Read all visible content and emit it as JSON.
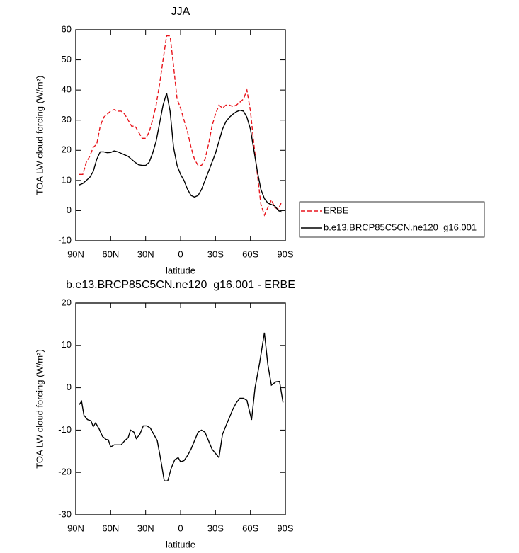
{
  "chart_data": [
    {
      "type": "line",
      "title": "JJA",
      "xlabel": "latitude",
      "ylabel": "TOA LW cloud forcing (W/m²)",
      "x": [
        87,
        84,
        81,
        78,
        75,
        72,
        69,
        66,
        63,
        60,
        57,
        54,
        51,
        48,
        45,
        42,
        39,
        36,
        33,
        30,
        27,
        24,
        21,
        18,
        15,
        12,
        9,
        6,
        3,
        0,
        -3,
        -6,
        -9,
        -12,
        -15,
        -18,
        -21,
        -24,
        -27,
        -30,
        -33,
        -36,
        -39,
        -42,
        -45,
        -48,
        -51,
        -54,
        -57,
        -60,
        -63,
        -66,
        -69,
        -72,
        -75,
        -78,
        -81,
        -84,
        -87
      ],
      "series": [
        {
          "name": "ERBE",
          "color": "#e8141b",
          "linestyle": "dashed",
          "values": [
            12,
            12,
            16,
            18,
            21,
            22,
            28,
            31,
            32,
            33,
            33.5,
            33,
            33,
            32,
            30,
            28,
            28,
            26,
            24,
            24,
            26,
            30,
            35,
            42,
            50,
            58,
            58,
            48,
            37,
            34,
            30,
            26,
            21,
            17,
            15,
            15,
            17,
            22,
            28,
            32,
            35,
            34,
            35,
            35,
            34.5,
            35,
            36,
            37,
            40,
            33,
            22,
            12,
            2,
            -1.5,
            1,
            3.5,
            1,
            0.5,
            3
          ]
        },
        {
          "name": "b.e13.BRCP85C5CN.ne120_g16.001",
          "color": "#000000",
          "linestyle": "solid",
          "values": [
            8.5,
            9,
            10,
            11,
            13,
            17,
            19.5,
            19.5,
            19.2,
            19.3,
            19.8,
            19.5,
            19,
            18.5,
            18,
            17,
            16,
            15.2,
            15,
            15,
            16,
            19,
            23,
            29,
            35,
            39,
            33,
            21,
            15,
            12,
            10,
            7,
            5,
            4.5,
            5,
            7,
            10,
            13,
            16,
            19,
            23,
            27,
            29.5,
            31,
            32,
            32.8,
            33.3,
            33,
            31,
            27,
            20,
            13,
            7,
            4,
            2.5,
            2,
            1.5,
            0,
            -0.5
          ]
        }
      ],
      "xlim": [
        90,
        -90
      ],
      "xticks": [
        {
          "value": 90,
          "label": "90N"
        },
        {
          "value": 60,
          "label": "60N"
        },
        {
          "value": 30,
          "label": "30N"
        },
        0,
        {
          "value": -30,
          "label": "30S"
        },
        {
          "value": -60,
          "label": "60S"
        },
        {
          "value": -90,
          "label": "90S"
        }
      ],
      "ylim": [
        -10,
        60
      ],
      "yticks": [
        -10,
        0,
        10,
        20,
        30,
        40,
        50,
        60
      ],
      "legend": "right"
    },
    {
      "type": "line",
      "title": "b.e13.BRCP85C5CN.ne120_g16.001 - ERBE",
      "xlabel": "latitude",
      "ylabel": "TOA LW cloud forcing (W/m²)",
      "x": [
        87,
        85,
        83,
        80,
        77,
        75,
        73,
        70,
        67,
        64,
        62,
        60,
        57,
        54,
        51,
        48,
        45,
        43,
        40,
        38,
        35,
        32,
        29,
        26,
        23,
        20,
        17,
        14,
        11,
        8,
        5,
        2,
        0,
        -3,
        -6,
        -9,
        -12,
        -15,
        -18,
        -21,
        -24,
        -27,
        -30,
        -33,
        -36,
        -39,
        -42,
        -45,
        -48,
        -51,
        -54,
        -57,
        -61,
        -64,
        -68,
        -72,
        -75,
        -78,
        -82,
        -85,
        -88
      ],
      "values": [
        -4,
        -3.2,
        -6.5,
        -7.5,
        -7.8,
        -9.2,
        -8.3,
        -9.7,
        -11.5,
        -12.2,
        -12.3,
        -14,
        -13.5,
        -13.5,
        -13.5,
        -12.5,
        -11.8,
        -10,
        -10.5,
        -12,
        -11,
        -9,
        -9,
        -9.5,
        -11,
        -12.5,
        -17,
        -22,
        -22,
        -19,
        -17,
        -16.5,
        -17.5,
        -17.2,
        -16,
        -14.5,
        -12.5,
        -10.5,
        -10,
        -10.5,
        -12.5,
        -14.5,
        -15.5,
        -16.5,
        -11,
        -9,
        -7,
        -5,
        -3.5,
        -2.5,
        -2.5,
        -3,
        -7.6,
        0,
        6,
        13,
        5.4,
        0.6,
        1.4,
        1.5,
        -3.5
      ],
      "color": "#000000",
      "xlim": [
        90,
        -90
      ],
      "xticks": [
        {
          "value": 90,
          "label": "90N"
        },
        {
          "value": 60,
          "label": "60N"
        },
        {
          "value": 30,
          "label": "30N"
        },
        0,
        {
          "value": -30,
          "label": "30S"
        },
        {
          "value": -60,
          "label": "60S"
        },
        {
          "value": -90,
          "label": "90S"
        }
      ],
      "ylim": [
        -30,
        20
      ],
      "yticks": [
        -30,
        -20,
        -10,
        0,
        10,
        20
      ]
    }
  ]
}
